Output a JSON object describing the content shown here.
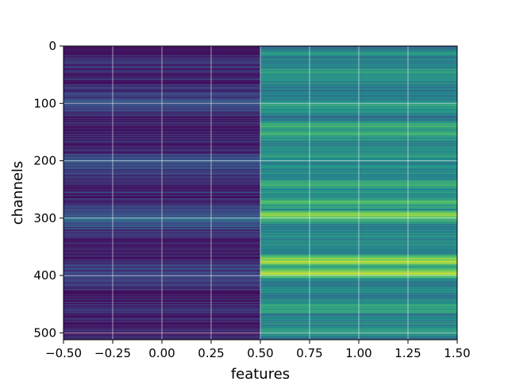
{
  "chart_data": {
    "type": "heatmap",
    "title": "",
    "xlabel": "features",
    "ylabel": "channels",
    "xlim": [
      -0.5,
      1.5
    ],
    "ylim": [
      512,
      0
    ],
    "x_ticks": [
      -0.5,
      -0.25,
      0.0,
      0.25,
      0.5,
      0.75,
      1.0,
      1.25,
      1.5
    ],
    "x_tick_labels": [
      "−0.50",
      "−0.25",
      "0.00",
      "0.25",
      "0.50",
      "0.75",
      "1.00",
      "1.25",
      "1.50"
    ],
    "y_ticks": [
      0,
      100,
      200,
      300,
      400,
      500
    ],
    "y_tick_labels": [
      "0",
      "100",
      "200",
      "300",
      "400",
      "500"
    ],
    "grid": true,
    "colormap": "viridis",
    "columns": [
      0,
      1
    ],
    "rows": 512,
    "values": {
      "0": [
        [
          0,
          0.06
        ],
        [
          20,
          0.1
        ],
        [
          46,
          0.14
        ],
        [
          65,
          0.1
        ],
        [
          100,
          0.22
        ],
        [
          125,
          0.1
        ],
        [
          182,
          0.12
        ],
        [
          200,
          0.28
        ],
        [
          235,
          0.12
        ],
        [
          270,
          0.1
        ],
        [
          300,
          0.35
        ],
        [
          330,
          0.12
        ],
        [
          372,
          0.1
        ],
        [
          397,
          0.22
        ],
        [
          436,
          0.1
        ],
        [
          470,
          0.12
        ],
        [
          505,
          0.08
        ]
      ],
      "1": [
        [
          0,
          0.3
        ],
        [
          12,
          0.55
        ],
        [
          21,
          0.42
        ],
        [
          35,
          0.45
        ],
        [
          44,
          0.55
        ],
        [
          60,
          0.5
        ],
        [
          78,
          0.4
        ],
        [
          90,
          0.42
        ],
        [
          103,
          0.62
        ],
        [
          122,
          0.38
        ],
        [
          131,
          0.48
        ],
        [
          140,
          0.62
        ],
        [
          145,
          0.55
        ],
        [
          152,
          0.65
        ],
        [
          165,
          0.5
        ],
        [
          172,
          0.45
        ],
        [
          183,
          0.48
        ],
        [
          195,
          0.55
        ],
        [
          205,
          0.4
        ],
        [
          215,
          0.45
        ],
        [
          232,
          0.45
        ],
        [
          240,
          0.7
        ],
        [
          252,
          0.5
        ],
        [
          262,
          0.48
        ],
        [
          272,
          0.65
        ],
        [
          285,
          0.5
        ],
        [
          294,
          0.88
        ],
        [
          310,
          0.45
        ],
        [
          325,
          0.5
        ],
        [
          345,
          0.48
        ],
        [
          360,
          0.4
        ],
        [
          376,
          0.95
        ],
        [
          385,
          0.5
        ],
        [
          396,
          0.9
        ],
        [
          410,
          0.4
        ],
        [
          425,
          0.45
        ],
        [
          440,
          0.42
        ],
        [
          456,
          0.62
        ],
        [
          470,
          0.45
        ],
        [
          488,
          0.48
        ],
        [
          500,
          0.55
        ],
        [
          511,
          0.4
        ]
      ]
    }
  }
}
